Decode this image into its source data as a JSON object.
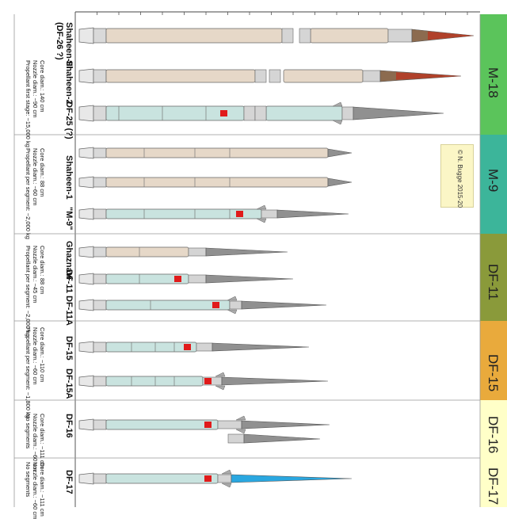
{
  "credit": "© N. Bugge 2015-20",
  "families": [
    {
      "name": "M-18",
      "color": "#5bc45b"
    },
    {
      "name": "M-9",
      "color": "#3cb59a"
    },
    {
      "name": "DF-11",
      "color": "#8a9a3a"
    },
    {
      "name": "DF-15",
      "color": "#e9aa3c"
    },
    {
      "name": "DF-16",
      "color": "#ffffc8"
    },
    {
      "name": "DF-17",
      "color": "#ffffc8"
    }
  ],
  "missiles": [
    {
      "name": "Shaheen-III\n(DF-26 ?)"
    },
    {
      "name": "Shaheen-2"
    },
    {
      "name": "DF-25 (?)"
    },
    {
      "name": "Shaheen-1"
    },
    {
      "name": "\"M-9\""
    },
    {
      "name": "Ghaznavi"
    },
    {
      "name": "DF-11"
    },
    {
      "name": "DF-11A"
    },
    {
      "name": "DF-15"
    },
    {
      "name": "DF-15A"
    },
    {
      "name": "DF-16"
    },
    {
      "name": "DF-17"
    }
  ],
  "specs": [
    "Core diam.: 140 cm\nNozzle diam.: ~90 cm\nPropellant first stage: ~15,000 kg",
    "Core diam.: 88 cm\nNozzle diam.: ~60 cm\nPropellant per segment: ~2,000 kg",
    "Core diam.: 88 cm\nNozzle diam.: ~45 cm\nPropellant per segment: ~2,000 kg",
    "Core diam.: ~110 cm\nNozzle diam.: ~60 cm\nPropellant per segment: ~1,800 kg",
    "Core diam.: ~111 cm\nNozzle diam.: ~60 cm\nNo segments",
    "Core diam.: ~111 cm\nNozzle diam.: ~60 cm\nNo segments"
  ]
}
